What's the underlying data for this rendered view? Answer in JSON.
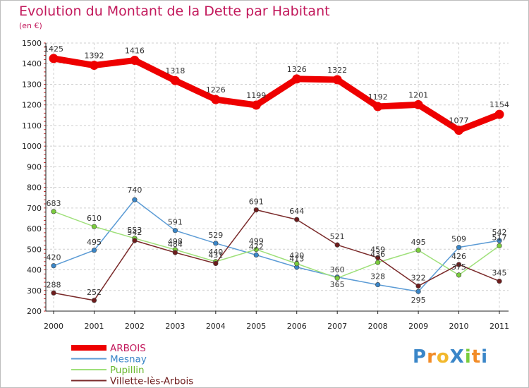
{
  "chart_data": {
    "type": "line",
    "title": "Evolution du Montant de la Dette par Habitant",
    "subtitle": "(en €)",
    "x": [
      "2000",
      "2001",
      "2002",
      "2003",
      "2004",
      "2005",
      "2006",
      "2007",
      "2008",
      "2009",
      "2010",
      "2011"
    ],
    "yticks": [
      "1500",
      "1400",
      "1300",
      "1200",
      "1100",
      "1000",
      "900",
      "800",
      "700",
      "600",
      "500",
      "400",
      "300",
      "200"
    ],
    "ylim": [
      200,
      1500
    ],
    "grid": true,
    "legend_position": "bottom-left",
    "series": [
      {
        "name": "ARBOIS",
        "values": [
          1425,
          1392,
          1416,
          1318,
          1226,
          1199,
          1326,
          1322,
          1192,
          1201,
          1077,
          1154
        ],
        "labels": [
          "1425",
          "1392",
          "1416",
          "1318",
          "1226",
          "1199",
          "1326",
          "1322",
          "1192",
          "1201",
          "1077",
          "1154"
        ],
        "color": "#ee0000",
        "dot": "#ee0000"
      },
      {
        "name": "Mesnay",
        "values": [
          420,
          495,
          740,
          591,
          529,
          472,
          413,
          365,
          328,
          295,
          509,
          542
        ],
        "labels": [
          "420",
          "495",
          "740",
          "591",
          "529",
          "472",
          "413",
          "365",
          "328",
          "295",
          "509",
          "542"
        ],
        "color": "#5b9bd5",
        "dot": "#3a86c8"
      },
      {
        "name": "Pupillin",
        "values": [
          683,
          610,
          553,
          498,
          440,
          499,
          430,
          360,
          436,
          495,
          375,
          517
        ],
        "labels": [
          "683",
          "610",
          "553",
          "498",
          "440",
          "499",
          "430",
          "360",
          "436",
          "495",
          "375",
          "517"
        ],
        "color": "#9fe07a",
        "dot": "#7acc3c"
      },
      {
        "name": "Villette-lès-Arbois",
        "values": [
          288,
          252,
          542,
          484,
          431,
          691,
          644,
          521,
          459,
          322,
          426,
          345
        ],
        "labels": [
          "288",
          "252",
          "542",
          "484",
          "431",
          "691",
          "644",
          "521",
          "459",
          "322",
          "426",
          "345"
        ],
        "color": "#7a2a2a",
        "dot": "#6e1c1c"
      }
    ]
  },
  "logo": {
    "text": "ProXiti",
    "letters": [
      "P",
      "r",
      "o",
      "X",
      "i",
      "t",
      "i"
    ],
    "colors": [
      "#3a86c8",
      "#f28c28",
      "#f2b82c",
      "#3a86c8",
      "#7acc3c",
      "#f28c28",
      "#3a86c8"
    ]
  }
}
